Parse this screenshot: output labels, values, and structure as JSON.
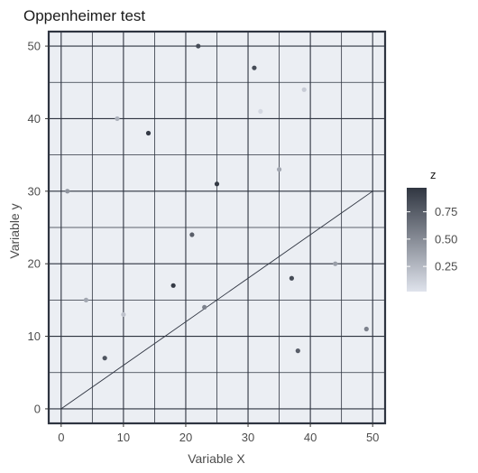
{
  "chart_data": {
    "type": "scatter",
    "title": "Oppenheimer test",
    "xlabel": "Variable X",
    "ylabel": "Variable y",
    "xlim": [
      -2,
      52
    ],
    "ylim": [
      -2,
      52
    ],
    "x_ticks": [
      0,
      10,
      20,
      30,
      40,
      50
    ],
    "y_ticks": [
      0,
      10,
      20,
      30,
      40,
      50
    ],
    "grid": true,
    "legend": {
      "title": "z",
      "ticks": [
        0.25,
        0.5,
        0.75
      ],
      "tick_labels": [
        "0.25",
        "0.50",
        "0.75"
      ],
      "range": [
        0.02,
        0.97
      ],
      "placement": "right",
      "color_low": "#dfe3ec",
      "color_high": "#303641"
    },
    "colors": {
      "panel_background": "#ebeef3",
      "grid": "#2e3440",
      "border": "#2e3440",
      "line": "#2e3440"
    },
    "line": {
      "x": [
        0,
        50
      ],
      "y": [
        0,
        30
      ]
    },
    "points": [
      {
        "x": 22,
        "y": 50,
        "z": 0.85
      },
      {
        "x": 31,
        "y": 47,
        "z": 0.85
      },
      {
        "x": 39,
        "y": 44,
        "z": 0.15
      },
      {
        "x": 32,
        "y": 41,
        "z": 0.08
      },
      {
        "x": 9,
        "y": 40,
        "z": 0.3
      },
      {
        "x": 14,
        "y": 38,
        "z": 0.95
      },
      {
        "x": 35,
        "y": 33,
        "z": 0.35
      },
      {
        "x": 25,
        "y": 31,
        "z": 0.95
      },
      {
        "x": 1,
        "y": 30,
        "z": 0.45
      },
      {
        "x": 21,
        "y": 24,
        "z": 0.75
      },
      {
        "x": 44,
        "y": 20,
        "z": 0.4
      },
      {
        "x": 37,
        "y": 18,
        "z": 0.85
      },
      {
        "x": 18,
        "y": 17,
        "z": 0.95
      },
      {
        "x": 4,
        "y": 15,
        "z": 0.35
      },
      {
        "x": 23,
        "y": 14,
        "z": 0.55
      },
      {
        "x": 10,
        "y": 13,
        "z": 0.2
      },
      {
        "x": 49,
        "y": 11,
        "z": 0.55
      },
      {
        "x": 38,
        "y": 8,
        "z": 0.75
      },
      {
        "x": 7,
        "y": 7,
        "z": 0.8
      }
    ]
  }
}
